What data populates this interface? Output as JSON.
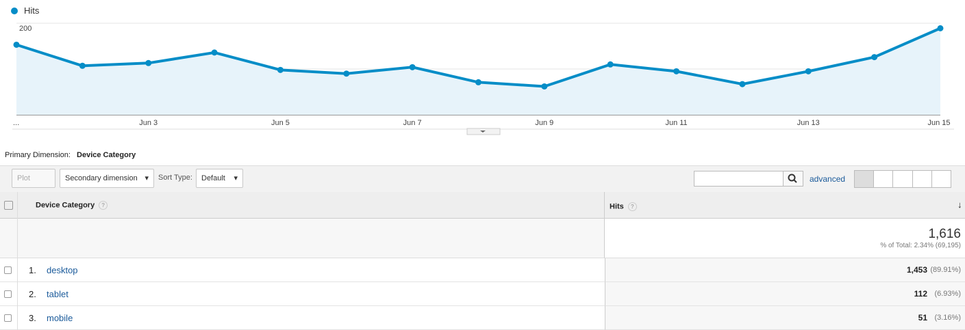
{
  "chart_data": {
    "type": "line",
    "categories": [
      "...",
      null,
      "Jun 3",
      null,
      "Jun 5",
      null,
      "Jun 7",
      null,
      "Jun 9",
      null,
      "Jun 11",
      null,
      "Jun 13",
      null,
      "Jun 15"
    ],
    "series": [
      {
        "name": "Hits",
        "color": "#058dc7",
        "values": [
          153,
          107,
          113,
          136,
          98,
          90,
          104,
          71,
          62,
          110,
          95,
          67,
          95,
          126,
          189
        ]
      }
    ],
    "ylim": [
      0,
      200
    ],
    "yticks": [
      100,
      200
    ],
    "grid": true
  },
  "toolbar": {
    "primary_label": "Primary Dimension:",
    "primary_value": "Device Category",
    "plot_rows": "Plot Rows",
    "secondary": "Secondary dimension",
    "sort_label": "Sort Type:",
    "sort_value": "Default",
    "advanced": "advanced"
  },
  "table": {
    "columns": [
      "Device Category",
      "Hits"
    ],
    "total": "1,616",
    "total_note": "% of Total: 2.34% (69,195)",
    "rows": [
      [
        "1.",
        "desktop",
        "1,453",
        "(89.91%)"
      ],
      [
        "2.",
        "tablet",
        "112",
        "(6.93%)"
      ],
      [
        "3.",
        "mobile",
        "51",
        "(3.16%)"
      ]
    ]
  }
}
